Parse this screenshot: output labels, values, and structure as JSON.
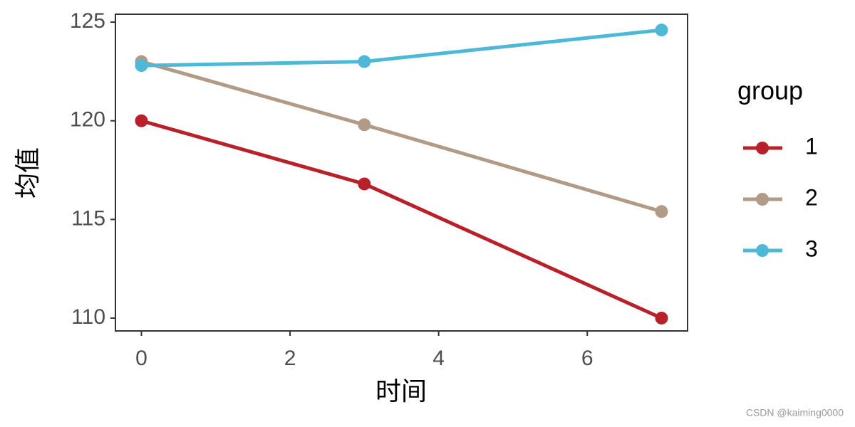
{
  "chart_data": {
    "type": "line",
    "xlabel": "时间",
    "ylabel": "均值",
    "legend_title": "group",
    "legend": "right",
    "series": [
      {
        "name": "1",
        "color": "#b8202a",
        "x": [
          0,
          3,
          7
        ],
        "values": [
          120,
          116.8,
          110
        ]
      },
      {
        "name": "2",
        "color": "#b19b86",
        "x": [
          0,
          3,
          7
        ],
        "values": [
          123,
          119.8,
          115.4
        ]
      },
      {
        "name": "3",
        "color": "#4db9d6",
        "x": [
          0,
          3,
          7
        ],
        "values": [
          122.8,
          123,
          124.6
        ]
      }
    ],
    "xlim": [
      -0.35,
      7.35
    ],
    "xticks": [
      0,
      2,
      4,
      6
    ],
    "ylim": [
      109.35,
      125.4
    ],
    "yticks": [
      110,
      115,
      120,
      125
    ],
    "grid": false,
    "watermark": "CSDN @kaiming0000"
  }
}
